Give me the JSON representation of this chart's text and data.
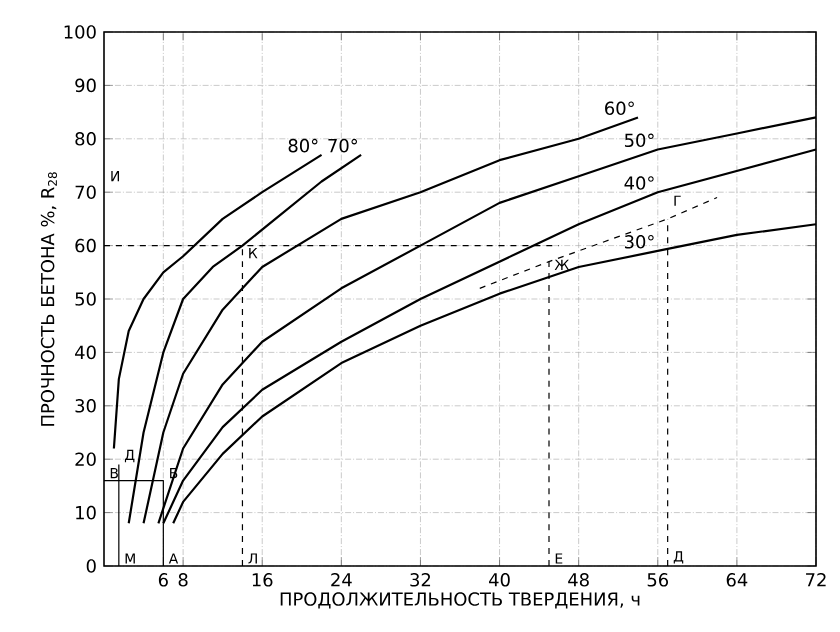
{
  "chart_data": {
    "type": "line",
    "xlabel": "ПРОДОЛЖИТЕЛЬНОСТЬ ТВЕРДЕНИЯ, ч",
    "ylabel": "ПРОЧНОСТЬ БЕТОНА %, R$_{28}$",
    "xlim": [
      0,
      72
    ],
    "ylim": [
      0,
      100
    ],
    "xticks": [
      6,
      8,
      16,
      24,
      32,
      40,
      48,
      56,
      64,
      72
    ],
    "yticks": [
      0,
      10,
      20,
      30,
      40,
      50,
      60,
      70,
      80,
      90,
      100
    ],
    "grid": true,
    "series": [
      {
        "name": "80°",
        "color": "#000000",
        "line_style": "solid",
        "x": [
          1,
          1.5,
          2.5,
          4,
          6,
          8,
          12,
          16,
          22
        ],
        "values": [
          22,
          35,
          44,
          50,
          55,
          58,
          65,
          70,
          77
        ]
      },
      {
        "name": "70°",
        "color": "#000000",
        "line_style": "solid",
        "x": [
          2.5,
          4,
          6,
          8,
          11,
          14,
          18,
          22,
          26
        ],
        "values": [
          8,
          25,
          40,
          50,
          56,
          60,
          66,
          72,
          77
        ]
      },
      {
        "name": "60°",
        "color": "#000000",
        "line_style": "solid",
        "x": [
          4,
          6,
          8,
          12,
          16,
          24,
          32,
          40,
          48,
          54
        ],
        "values": [
          8,
          25,
          36,
          48,
          56,
          65,
          70,
          76,
          80,
          84
        ]
      },
      {
        "name": "50°",
        "color": "#000000",
        "line_style": "solid",
        "x": [
          5.5,
          8,
          12,
          16,
          24,
          32,
          40,
          48,
          56,
          64,
          72
        ],
        "values": [
          8,
          22,
          34,
          42,
          52,
          60,
          68,
          73,
          78,
          81,
          84
        ]
      },
      {
        "name": "40°",
        "color": "#000000",
        "line_style": "solid",
        "x": [
          6,
          8,
          12,
          16,
          24,
          32,
          40,
          48,
          56,
          64,
          72
        ],
        "values": [
          8,
          16,
          26,
          33,
          42,
          50,
          57,
          64,
          70,
          74,
          78
        ]
      },
      {
        "name": "30°",
        "color": "#000000",
        "line_style": "solid",
        "x": [
          7,
          8,
          12,
          16,
          24,
          32,
          40,
          48,
          56,
          64,
          72
        ],
        "values": [
          8,
          12,
          21,
          28,
          38,
          45,
          51,
          56,
          59,
          62,
          64
        ]
      },
      {
        "color": "#000000",
        "line_style": "dashed",
        "x": [
          0,
          46
        ],
        "values": [
          60,
          60
        ]
      },
      {
        "color": "#000000",
        "line_style": "dashed",
        "x": [
          14,
          14
        ],
        "values": [
          0,
          60
        ]
      },
      {
        "color": "#000000",
        "line_style": "dashed",
        "x": [
          45,
          45
        ],
        "values": [
          0,
          57
        ]
      },
      {
        "color": "#000000",
        "line_style": "dashed",
        "x": [
          57,
          57
        ],
        "values": [
          0,
          65
        ]
      },
      {
        "color": "#000000",
        "line_style": "dashed",
        "x": [
          38,
          45,
          57,
          62
        ],
        "values": [
          52,
          57,
          65,
          69
        ]
      },
      {
        "color": "#000000",
        "line_style": "solid",
        "x": [
          0,
          6,
          6
        ],
        "values": [
          16,
          16,
          0
        ]
      },
      {
        "color": "#000000",
        "line_style": "solid",
        "x": [
          1.5,
          1.5
        ],
        "values": [
          0,
          19
        ]
      }
    ],
    "annotations": [
      {
        "text": "М",
        "x": 1.5,
        "y": 0
      },
      {
        "text": "А",
        "x": 6,
        "y": 0
      },
      {
        "text": "Л",
        "x": 14,
        "y": 0
      },
      {
        "text": "Е",
        "x": 45,
        "y": 0
      },
      {
        "text": "Д",
        "x": 57,
        "y": 0
      },
      {
        "text": "В",
        "x": 0,
        "y": 16
      },
      {
        "text": "Д",
        "x": 1.5,
        "y": 19
      },
      {
        "text": "Б",
        "x": 6,
        "y": 16
      },
      "И",
      {
        "text": "К",
        "x": 14,
        "y": 60
      },
      {
        "text": "Ж",
        "x": 45,
        "y": 55
      },
      {
        "text": "Г",
        "x": 57,
        "y": 67
      }
    ]
  }
}
